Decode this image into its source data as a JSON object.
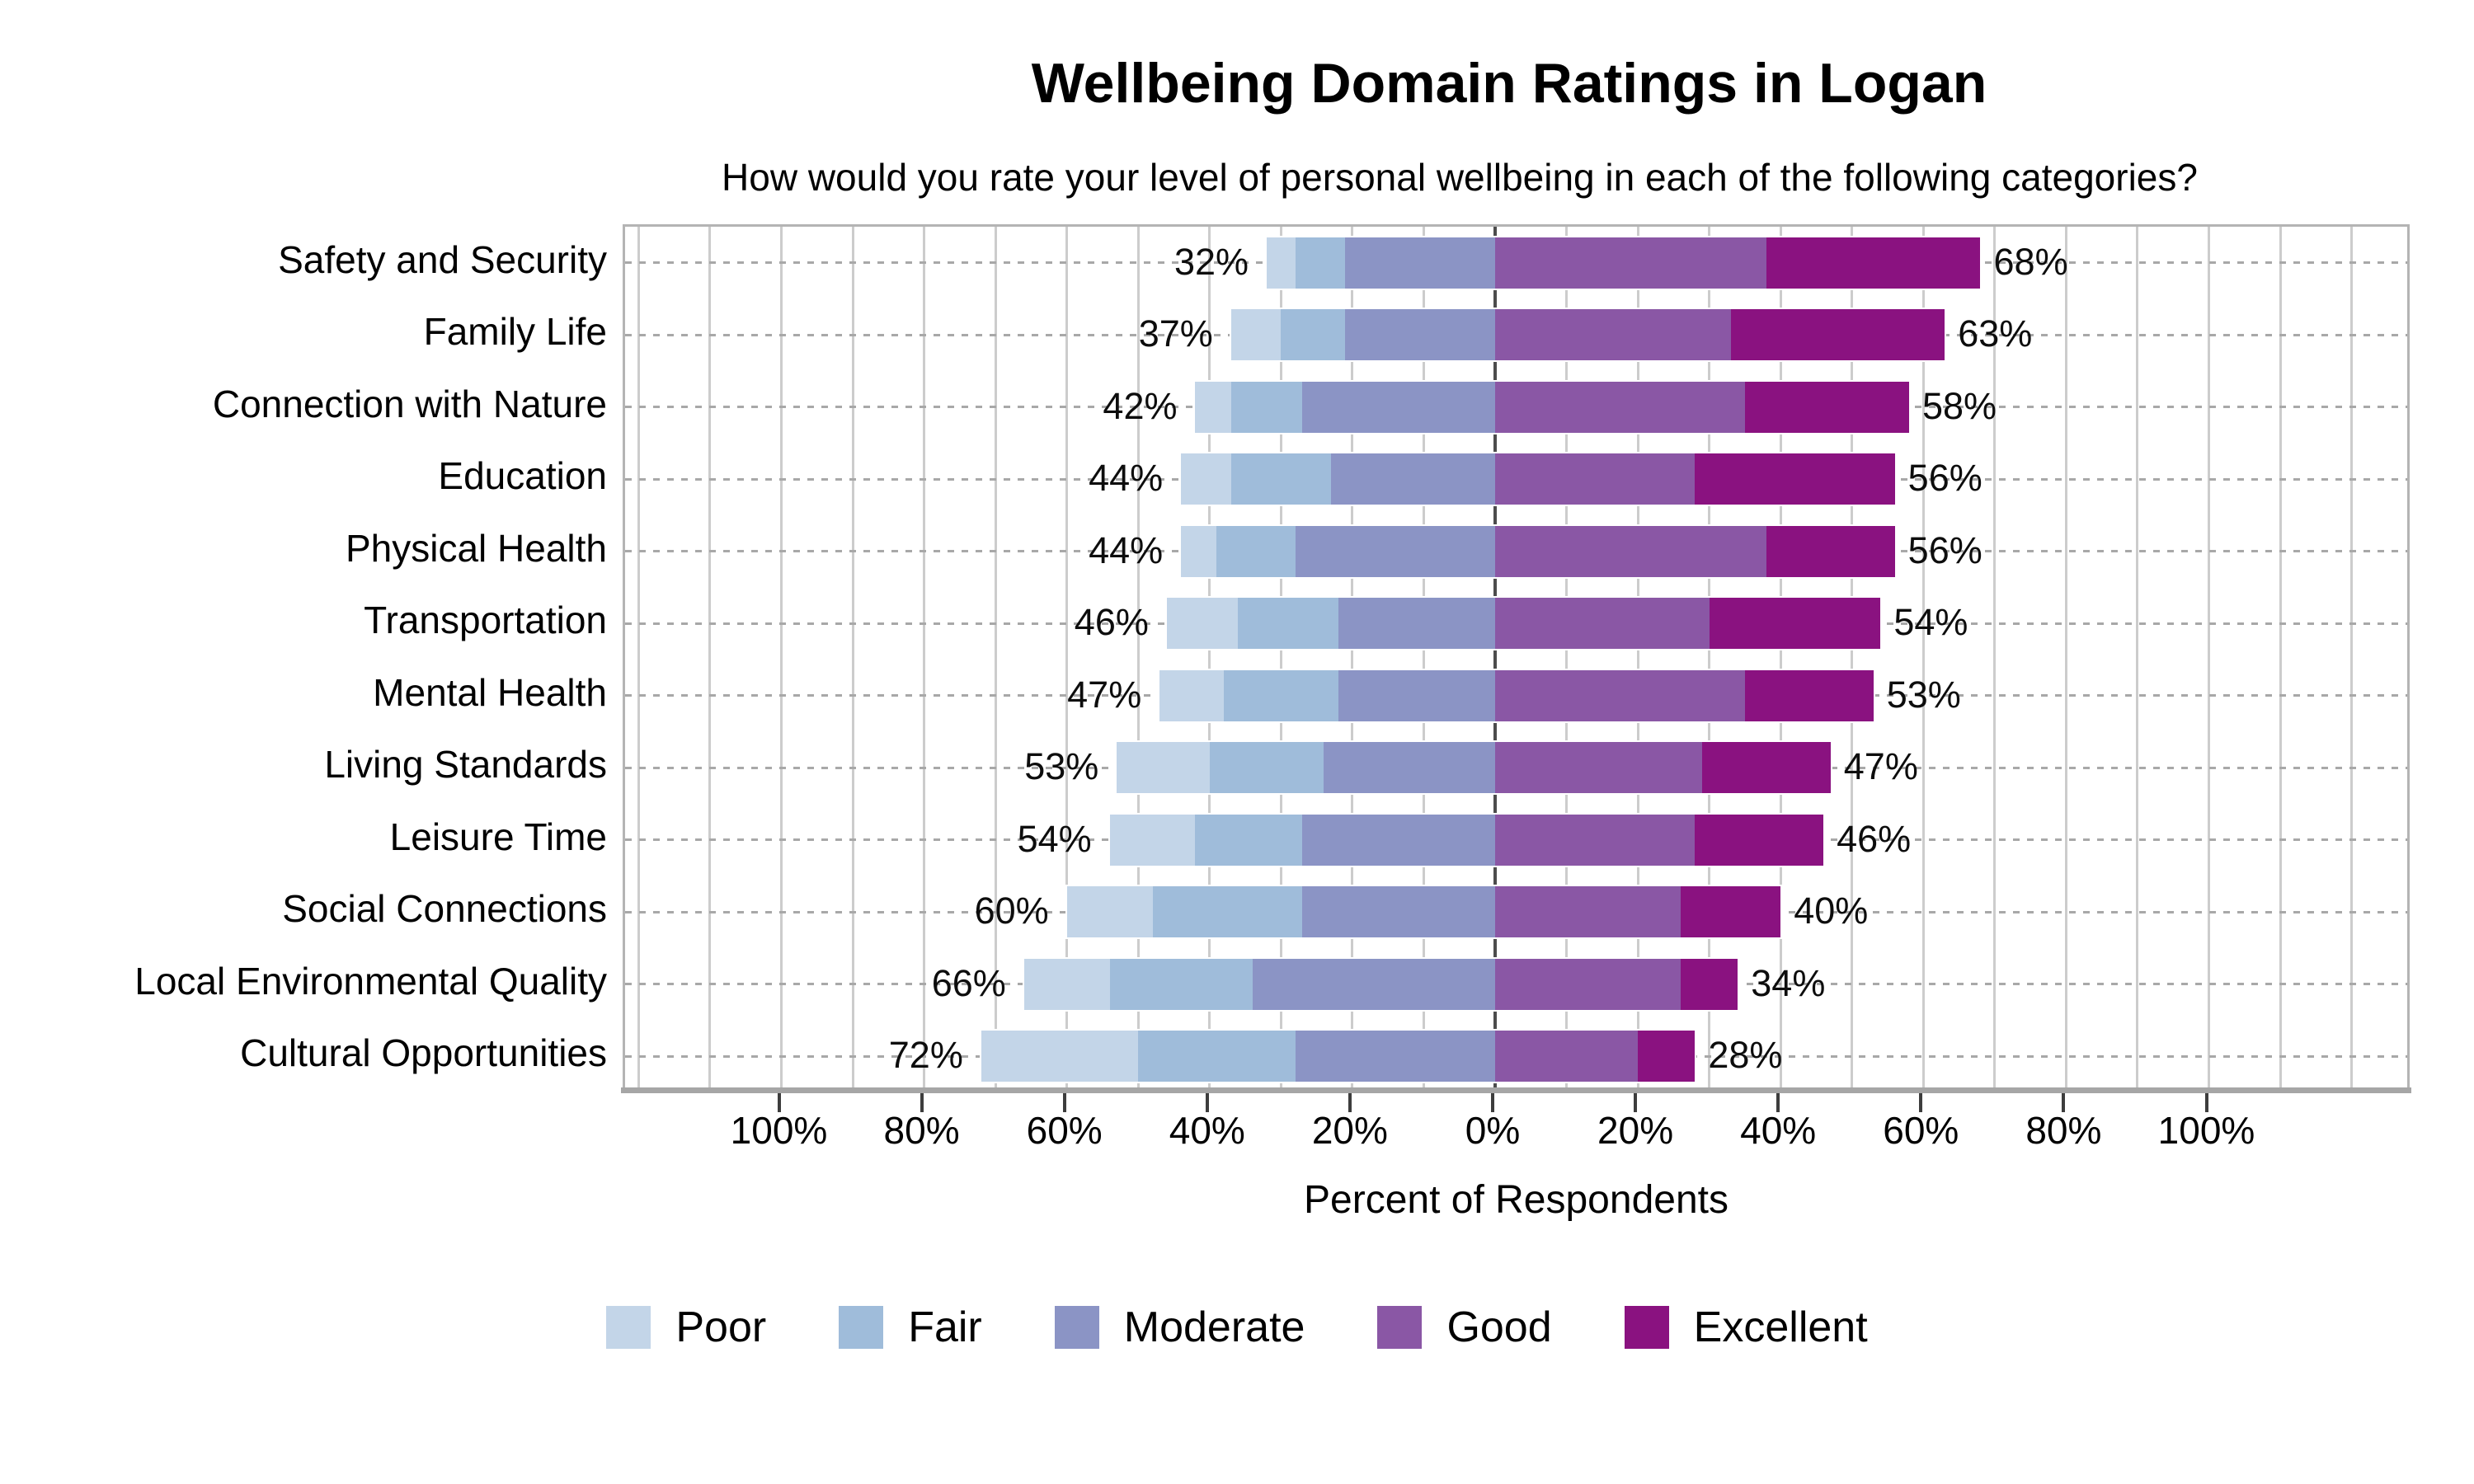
{
  "chart": {
    "title": "Wellbeing Domain Ratings in Logan",
    "subtitle": "How would you rate your level of personal wellbeing in each of the following categories?",
    "xlabel": "Percent of Respondents"
  },
  "chart_data": {
    "type": "bar",
    "variant": "diverging_stacked_likert",
    "title": "Wellbeing Domain Ratings in Logan",
    "subtitle": "How would you rate your level of personal wellbeing in each of the following categories?",
    "xlabel": "Percent of Respondents",
    "categories": [
      "Safety and Security",
      "Family Life",
      "Connection with Nature",
      "Education",
      "Physical Health",
      "Transportation",
      "Mental Health",
      "Living Standards",
      "Leisure Time",
      "Social Connections",
      "Local Environmental Quality",
      "Cultural Opportunities"
    ],
    "series": [
      {
        "name": "Poor",
        "color": "#c3d5e8",
        "side": "left",
        "values": [
          4,
          7,
          5,
          7,
          5,
          10,
          9,
          13,
          12,
          12,
          12,
          22
        ]
      },
      {
        "name": "Fair",
        "color": "#9fbcda",
        "side": "left",
        "values": [
          7,
          9,
          10,
          14,
          11,
          14,
          16,
          16,
          15,
          21,
          20,
          22
        ]
      },
      {
        "name": "Moderate",
        "color": "#8b94c5",
        "side": "left",
        "values": [
          21,
          21,
          27,
          23,
          28,
          22,
          22,
          24,
          27,
          27,
          34,
          28
        ]
      },
      {
        "name": "Good",
        "color": "#8a57a5",
        "side": "right",
        "values": [
          38,
          33,
          35,
          28,
          38,
          30,
          35,
          29,
          28,
          26,
          26,
          20
        ]
      },
      {
        "name": "Excellent",
        "color": "#8a1280",
        "side": "right",
        "values": [
          30,
          30,
          23,
          28,
          18,
          24,
          18,
          18,
          18,
          14,
          8,
          8
        ]
      }
    ],
    "left_totals": [
      32,
      37,
      42,
      44,
      44,
      46,
      47,
      53,
      54,
      60,
      66,
      72
    ],
    "right_totals": [
      68,
      63,
      58,
      56,
      56,
      54,
      53,
      47,
      46,
      40,
      34,
      28
    ],
    "left_total_labels": [
      "32%",
      "37%",
      "42%",
      "44%",
      "44%",
      "46%",
      "47%",
      "53%",
      "54%",
      "60%",
      "66%",
      "72%"
    ],
    "right_total_labels": [
      "68%",
      "63%",
      "58%",
      "56%",
      "56%",
      "54%",
      "53%",
      "47%",
      "46%",
      "40%",
      "34%",
      "28%"
    ],
    "axis": {
      "tick_values": [
        -100,
        -80,
        -60,
        -40,
        -20,
        0,
        20,
        40,
        60,
        80,
        100
      ],
      "tick_labels": [
        "100%",
        "80%",
        "60%",
        "40%",
        "20%",
        "0%",
        "20%",
        "40%",
        "60%",
        "80%",
        "100%"
      ],
      "xlim": [
        -122,
        128
      ],
      "minor_grid_step": 10,
      "zero_line": true,
      "grid": true
    },
    "legend_position": "bottom"
  },
  "legend": {
    "items": [
      {
        "label": "Poor",
        "color": "#c3d5e8"
      },
      {
        "label": "Fair",
        "color": "#9fbcda"
      },
      {
        "label": "Moderate",
        "color": "#8b94c5"
      },
      {
        "label": "Good",
        "color": "#8a57a5"
      },
      {
        "label": "Excellent",
        "color": "#8a1280"
      }
    ]
  },
  "colors": {
    "grid_minor": "#cccccc",
    "zero_line": "#4c4c4c",
    "row_gridline": "#a8a8a8",
    "axis_line": "#a6a6a6",
    "tick_mark": "#3d3d3d",
    "plot_border": "#b4b4b4",
    "text": "#000000"
  }
}
